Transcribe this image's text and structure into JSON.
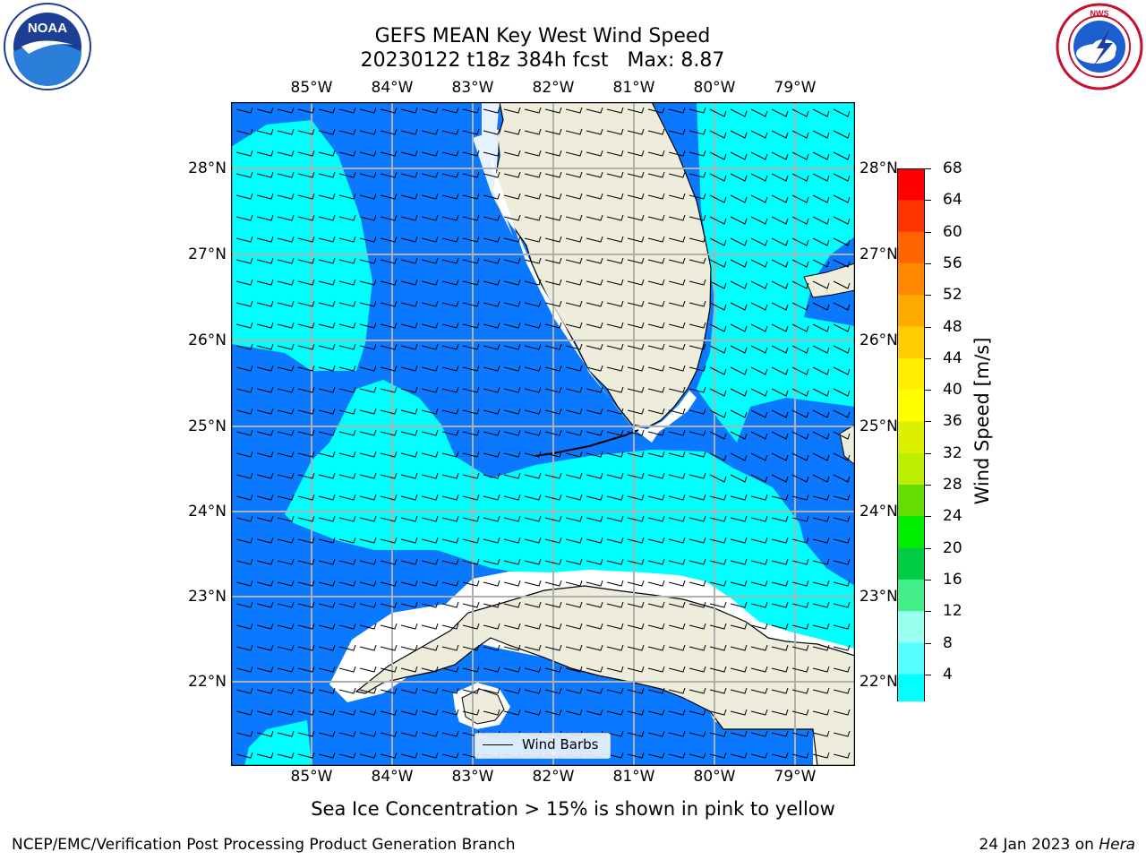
{
  "header": {
    "title_line1": "GEFS MEAN Key West Wind Speed",
    "title_line2": "20230122 t18z 384h fcst   Max: 8.87"
  },
  "logos": {
    "left": {
      "name": "noaa-logo",
      "text": "NOAA"
    },
    "right": {
      "name": "nws-logo",
      "text": "NATIONAL WEATHER SERVICE"
    }
  },
  "map": {
    "lon_labels": [
      "85°W",
      "84°W",
      "83°W",
      "82°W",
      "81°W",
      "80°W",
      "79°W"
    ],
    "lat_labels": [
      "28°N",
      "27°N",
      "26°N",
      "25°N",
      "24°N",
      "23°N",
      "22°N"
    ],
    "land_color": "#eeeddc",
    "barb_color": "#000000",
    "legend_label": "Wind Barbs"
  },
  "colorbar": {
    "label": "Wind Speed [m/s]",
    "ticks": [
      "68",
      "64",
      "60",
      "56",
      "52",
      "48",
      "44",
      "40",
      "36",
      "32",
      "28",
      "24",
      "20",
      "16",
      "12",
      "8",
      "4"
    ],
    "colors": [
      "#ff0000",
      "#ff3300",
      "#ff6600",
      "#ff8800",
      "#ffaa00",
      "#ffcc00",
      "#ffee00",
      "#ffff00",
      "#ddf000",
      "#bbee00",
      "#66dd00",
      "#00ee00",
      "#00cc44",
      "#44ee88",
      "#99ffee",
      "#55ffff",
      "#00ffff",
      "#0077ff"
    ],
    "under_color": "#0000ee"
  },
  "notes": {
    "ice": "Sea Ice Concentration > 15% is shown in pink to yellow"
  },
  "footer": {
    "left": "NCEP/EMC/Verification Post Processing Product Generation Branch",
    "right_date": "24 Jan 2023 on ",
    "right_host": "Hera"
  }
}
